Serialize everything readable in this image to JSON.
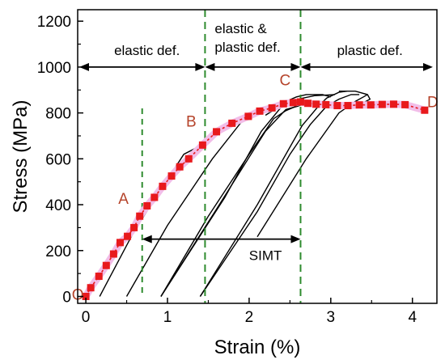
{
  "chart_data": {
    "type": "line",
    "xlabel": "Strain (%)",
    "ylabel": "Stress (MPa)",
    "xlim": [
      -0.1,
      4.3
    ],
    "ylim": [
      -30,
      1250
    ],
    "x_ticks": [
      0,
      1,
      2,
      3,
      4
    ],
    "y_ticks": [
      0,
      200,
      400,
      600,
      800,
      1000,
      1200
    ],
    "grid": false,
    "colors": {
      "series": "#e8191c",
      "glow": "#f2bde8",
      "boundary": "#2e8b2e",
      "point_label": "#b5432a",
      "loops": "#000000"
    },
    "series": [
      {
        "marker": "square",
        "x": [
          0.0,
          0.06,
          0.16,
          0.25,
          0.34,
          0.42,
          0.51,
          0.59,
          0.66,
          0.75,
          0.84,
          0.94,
          1.05,
          1.15,
          1.26,
          1.43,
          1.6,
          1.79,
          1.99,
          2.13,
          2.28,
          2.42,
          2.54,
          2.63,
          2.72,
          2.82,
          2.94,
          3.08,
          3.21,
          3.35,
          3.49,
          3.63,
          3.77,
          3.91,
          4.15
        ],
        "y": [
          0,
          38,
          88,
          135,
          185,
          235,
          262,
          300,
          350,
          395,
          432,
          480,
          525,
          565,
          600,
          660,
          718,
          755,
          785,
          808,
          822,
          840,
          845,
          848,
          842,
          838,
          836,
          832,
          832,
          835,
          835,
          837,
          838,
          836,
          812
        ]
      }
    ],
    "loops": [
      {
        "x": [
          0.17,
          0.6,
          1.2,
          1.42
        ],
        "y": [
          0,
          290,
          620,
          660
        ]
      },
      {
        "x": [
          0.5,
          1.0,
          1.55,
          1.9,
          2.1,
          2.23,
          2.3
        ],
        "y": [
          0,
          310,
          600,
          758,
          800,
          818,
          822
        ]
      },
      {
        "x": [
          0.92,
          1.6,
          2.2,
          2.45,
          2.6,
          2.66
        ],
        "y": [
          0,
          380,
          720,
          815,
          830,
          838
        ]
      },
      {
        "x": [
          0.92,
          1.5,
          2.0,
          2.3,
          2.45,
          2.55,
          2.6
        ],
        "y": [
          0,
          350,
          620,
          775,
          810,
          825,
          830
        ]
      },
      {
        "x": [
          0.92,
          1.7,
          2.15,
          2.45,
          2.58,
          2.7,
          2.9,
          3.0
        ],
        "y": [
          0,
          430,
          720,
          850,
          870,
          880,
          880,
          870
        ]
      },
      {
        "x": [
          2.2,
          2.4,
          2.6,
          2.8,
          3.05
        ],
        "y": [
          790,
          835,
          860,
          875,
          880
        ]
      },
      {
        "x": [
          1.4,
          2.1,
          2.65,
          2.85,
          2.95,
          3.1,
          3.2
        ],
        "y": [
          0,
          400,
          745,
          830,
          865,
          890,
          895
        ]
      },
      {
        "x": [
          1.4,
          2.1,
          2.5,
          2.75,
          2.95,
          3.1,
          3.25,
          3.35
        ],
        "y": [
          0,
          370,
          620,
          750,
          830,
          860,
          880,
          880
        ]
      },
      {
        "x": [
          3.1,
          3.3,
          3.45,
          3.48,
          3.35
        ],
        "y": [
          895,
          895,
          880,
          860,
          835
        ]
      },
      {
        "x": [
          2.1,
          2.7,
          3.1,
          3.3,
          3.4,
          3.45
        ],
        "y": [
          260,
          600,
          800,
          850,
          870,
          880
        ]
      }
    ],
    "boundaries": [
      1.46,
      2.63
    ],
    "extra_marker": {
      "x": 0.69,
      "y_from": 0,
      "y_to": 820
    },
    "regions": [
      {
        "label": "elastic def.",
        "x_from": -0.1,
        "x_to": 1.46
      },
      {
        "label": "elastic & plastic def.",
        "x_from": 1.46,
        "x_to": 2.63
      },
      {
        "label": "plastic def.",
        "x_from": 2.63,
        "x_to": 4.25
      }
    ],
    "simt": {
      "label": "SIMT",
      "x_from": 0.69,
      "x_to": 2.63,
      "y": 250
    },
    "point_labels": [
      {
        "label": "O",
        "x": 0.0,
        "y": 0
      },
      {
        "label": "A",
        "x": 0.5,
        "y": 390
      },
      {
        "label": "B",
        "x": 1.33,
        "y": 720
      },
      {
        "label": "C",
        "x": 2.5,
        "y": 900
      },
      {
        "label": "D",
        "x": 4.15,
        "y": 840
      }
    ],
    "region_text": {
      "elastic": "elastic def.",
      "elastic_plastic_1": "elastic &",
      "elastic_plastic_2": "plastic def.",
      "plastic": "plastic def."
    }
  }
}
